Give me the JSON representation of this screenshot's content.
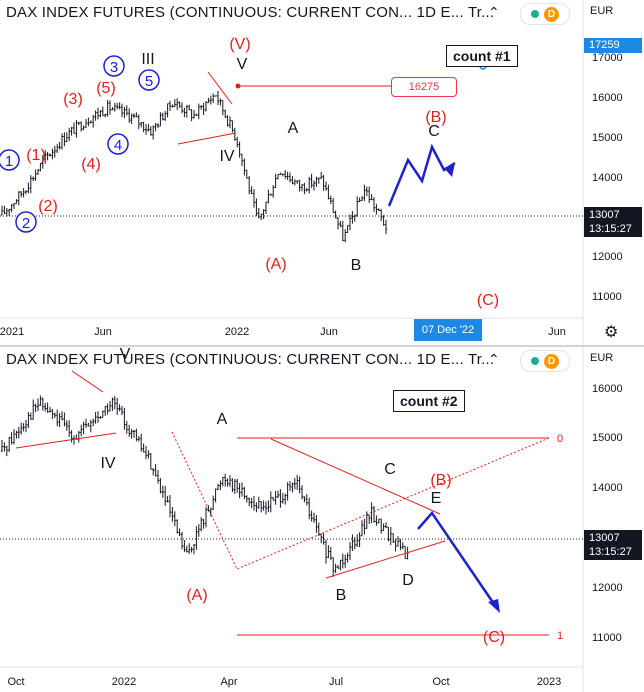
{
  "panels": [
    {
      "title": "DAX INDEX FUTURES (CONTINUOUS: CURRENT CON...  1D  E...  Tr...",
      "currency": "EUR",
      "count_label": "count #1",
      "last_price": "13007",
      "countdown": "13:15:27",
      "high_tag": "17259",
      "level_label": "16275",
      "crosshair_date": "07 Dec '22",
      "y_ticks": [
        "17000",
        "16000",
        "15000",
        "14000",
        "13000",
        "12000",
        "11000"
      ],
      "x_ticks": [
        "2021",
        "Jun",
        "2022",
        "Jun",
        "Jun"
      ],
      "wave_labels": [
        {
          "text": "1",
          "style": "circle-blue"
        },
        {
          "text": "2",
          "style": "circle-blue"
        },
        {
          "text": "3",
          "style": "circle-blue"
        },
        {
          "text": "4",
          "style": "circle-blue"
        },
        {
          "text": "5",
          "style": "circle-blue"
        },
        {
          "text": "(1)",
          "style": "red"
        },
        {
          "text": "(2)",
          "style": "red"
        },
        {
          "text": "(3)",
          "style": "red"
        },
        {
          "text": "(4)",
          "style": "red"
        },
        {
          "text": "(5)",
          "style": "red"
        },
        {
          "text": "III",
          "style": "black"
        },
        {
          "text": "IV",
          "style": "black"
        },
        {
          "text": "V",
          "style": "black"
        },
        {
          "text": "(V)",
          "style": "red"
        },
        {
          "text": "A",
          "style": "black"
        },
        {
          "text": "B",
          "style": "black"
        },
        {
          "text": "C",
          "style": "black"
        },
        {
          "text": "(A)",
          "style": "red"
        },
        {
          "text": "(B)",
          "style": "red"
        },
        {
          "text": "(C)",
          "style": "red"
        }
      ]
    },
    {
      "title": "DAX INDEX FUTURES (CONTINUOUS: CURRENT CON...  1D  E...  Tr...",
      "currency": "EUR",
      "count_label": "count #2",
      "last_price": "13007",
      "countdown": "13:15:27",
      "y_ticks": [
        "16000",
        "15000",
        "14000",
        "13000",
        "12000",
        "11000"
      ],
      "x_ticks": [
        "Oct",
        "2022",
        "Apr",
        "Jul",
        "Oct",
        "2023"
      ],
      "fib_labels": [
        "0",
        "1"
      ],
      "wave_labels": [
        {
          "text": "V",
          "style": "black"
        },
        {
          "text": "IV",
          "style": "black"
        },
        {
          "text": "A",
          "style": "black"
        },
        {
          "text": "B",
          "style": "black"
        },
        {
          "text": "C",
          "style": "black"
        },
        {
          "text": "D",
          "style": "black"
        },
        {
          "text": "E",
          "style": "black"
        },
        {
          "text": "(A)",
          "style": "red"
        },
        {
          "text": "(B)",
          "style": "red"
        },
        {
          "text": "(C)",
          "style": "red"
        }
      ]
    }
  ],
  "chart_data": [
    {
      "type": "candlestick",
      "title": "DAX INDEX FUTURES (CONTINUOUS: CURRENT CON... 1D",
      "annotation": "count #1",
      "ylim": [
        10300,
        17600
      ],
      "x": [
        "2020-11",
        "2021-01",
        "2021-03",
        "2021-04",
        "2021-06",
        "2021-08",
        "2021-09",
        "2021-10",
        "2021-11",
        "2021-12",
        "2022-01",
        "2022-02",
        "2022-03",
        "2022-04",
        "2022-05",
        "2022-06",
        "2022-07",
        "2022-08",
        "2022-09"
      ],
      "y": [
        13200,
        13800,
        14600,
        15200,
        15600,
        15900,
        15700,
        15300,
        16050,
        15700,
        16250,
        15100,
        13000,
        14350,
        13900,
        14100,
        12600,
        13850,
        12900
      ],
      "levels": [
        16275,
        13007
      ],
      "color": "#131722",
      "projection_color": "#1e22cc"
    },
    {
      "type": "candlestick",
      "title": "DAX INDEX FUTURES (CONTINUOUS: CURRENT CON... 1D",
      "annotation": "count #2",
      "ylim": [
        10300,
        16900
      ],
      "x": [
        "2021-10",
        "2021-11",
        "2021-12",
        "2022-01",
        "2022-02",
        "2022-03",
        "2022-04",
        "2022-05",
        "2022-06",
        "2022-07",
        "2022-08",
        "2022-09"
      ],
      "y": [
        15200,
        16200,
        15500,
        16200,
        15000,
        13000,
        14700,
        14000,
        14500,
        12700,
        13900,
        13000
      ],
      "levels": [
        15000,
        11100,
        13007
      ],
      "fib_levels": {
        "0": 15000,
        "1": 11100
      },
      "color": "#131722",
      "projection_color": "#1e22cc"
    }
  ],
  "colors": {
    "red": "#e0201b",
    "blue": "#1e22cc",
    "accent": "#1e88e5",
    "badge_green": "#22ab94",
    "badge_orange": "#ff9800"
  }
}
